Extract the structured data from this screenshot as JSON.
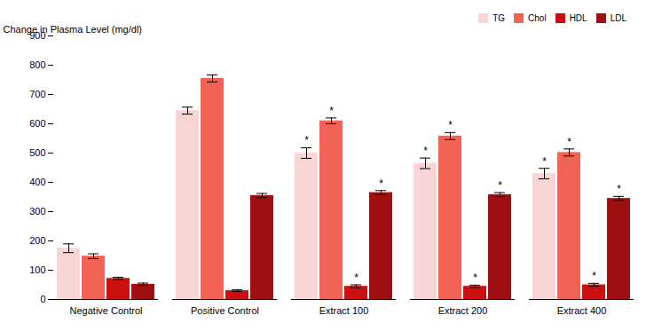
{
  "chart_data": {
    "type": "bar",
    "categories": [
      "Negative Control",
      "Positive Control",
      "Extract 100",
      "Extract 200",
      "Extract 400"
    ],
    "series": [
      {
        "name": "TG",
        "color": "#f9d4d4",
        "values": [
          175,
          645,
          500,
          465,
          430
        ],
        "errors": [
          15,
          12,
          18,
          18,
          18
        ]
      },
      {
        "name": "Chol",
        "color": "#f26255",
        "values": [
          148,
          755,
          610,
          558,
          502
        ],
        "errors": [
          8,
          12,
          10,
          12,
          12
        ]
      },
      {
        "name": "HDL",
        "color": "#cc1010",
        "values": [
          72,
          30,
          45,
          45,
          50
        ],
        "errors": [
          4,
          3,
          5,
          4,
          5
        ]
      },
      {
        "name": "LDL",
        "color": "#a01010",
        "values": [
          52,
          355,
          365,
          358,
          345
        ],
        "errors": [
          4,
          7,
          7,
          7,
          7
        ]
      }
    ],
    "annotations": [
      {
        "text": "*",
        "category": "Extract 100",
        "series": "TG"
      },
      {
        "text": "*",
        "category": "Extract 200",
        "series": "TG"
      },
      {
        "text": "*",
        "category": "Extract 400",
        "series": "TG"
      },
      {
        "text": "*",
        "category": "Extract 100",
        "series": "Chol"
      },
      {
        "text": "*",
        "category": "Extract 200",
        "series": "Chol"
      },
      {
        "text": "*",
        "category": "Extract 400",
        "series": "Chol"
      },
      {
        "text": "*",
        "category": "Extract 100",
        "series": "HDL"
      },
      {
        "text": "*",
        "category": "Extract 200",
        "series": "HDL"
      },
      {
        "text": "*",
        "category": "Extract 400",
        "series": "HDL"
      },
      {
        "text": "*",
        "category": "Extract 100",
        "series": "LDL"
      },
      {
        "text": "*",
        "category": "Extract 200",
        "series": "LDL"
      },
      {
        "text": "*",
        "category": "Extract 400",
        "series": "LDL"
      }
    ],
    "ylabel": "Change in Plasma Level (mg/dl)",
    "ylim": [
      0,
      900
    ],
    "yticks": [
      0,
      100,
      200,
      300,
      400,
      500,
      600,
      700,
      800,
      900
    ],
    "grid": false,
    "legend": "upper right"
  }
}
